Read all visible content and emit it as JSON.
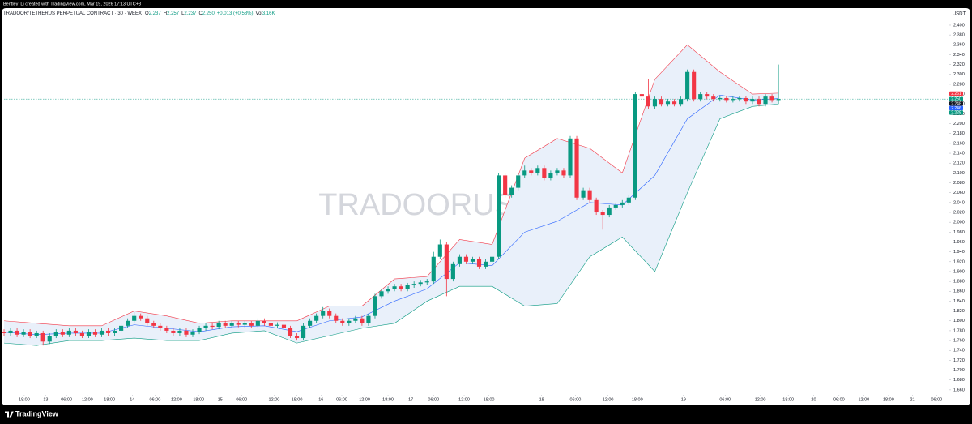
{
  "header": {
    "credit": "Bentley_Li created with TradingView.com, Mar 19, 2026 17:13 UTC+8"
  },
  "chart_data": {
    "type": "candlestick",
    "symbol": "TRADOOR/TETHERUS PERPETUAL CONTRACT · 30 · WEEX",
    "legend_values": [
      {
        "label": "O",
        "value": "2.237"
      },
      {
        "label": "H",
        "value": "2.257"
      },
      {
        "label": "L",
        "value": "2.237"
      },
      {
        "label": "C",
        "value": "2.250"
      }
    ],
    "change": "+0.013 (+0.58%)",
    "volume": {
      "label": "Vol",
      "value": "3.16K"
    },
    "watermark": "TRADOORUSDT.P, 30",
    "y_unit": "USDT",
    "up_color": "#089981",
    "down_color": "#f23645",
    "open": [
      1.778,
      1.775,
      1.78,
      1.772,
      1.778,
      1.77,
      1.775,
      1.758,
      1.77,
      1.778,
      1.772,
      1.78,
      1.775,
      1.77,
      1.778,
      1.772,
      1.78,
      1.775,
      1.78,
      1.79,
      1.8,
      1.81,
      1.805,
      1.795,
      1.79,
      1.785,
      1.78,
      1.775,
      1.78,
      1.772,
      1.778,
      1.785,
      1.79,
      1.788,
      1.795,
      1.79,
      1.795,
      1.792,
      1.795,
      1.79,
      1.8,
      1.795,
      1.79,
      1.792,
      1.785,
      1.77,
      1.765,
      1.79,
      1.8,
      1.81,
      1.82,
      1.81,
      1.8,
      1.795,
      1.8,
      1.805,
      1.795,
      1.81,
      1.85,
      1.86,
      1.865,
      1.87,
      1.865,
      1.872,
      1.875,
      1.878,
      1.88,
      1.93,
      1.955,
      1.885,
      1.915,
      1.93,
      1.92,
      1.925,
      1.91,
      1.92,
      1.93,
      2.095,
      2.055,
      2.07,
      2.095,
      2.105,
      2.1,
      2.11,
      2.09,
      2.1,
      2.105,
      2.095,
      2.17,
      2.05,
      2.065,
      2.045,
      2.02,
      2.015,
      2.03,
      2.035,
      2.04,
      2.05,
      2.26,
      2.255,
      2.235,
      2.25,
      2.24,
      2.245,
      2.24,
      2.25,
      2.305,
      2.25,
      2.26,
      2.255,
      2.25,
      2.252,
      2.248,
      2.25,
      2.252,
      2.245,
      2.25,
      2.24,
      2.255,
      2.248
    ],
    "high": [
      1.783,
      1.785,
      1.785,
      1.783,
      1.783,
      1.78,
      1.78,
      1.775,
      1.783,
      1.783,
      1.785,
      1.785,
      1.78,
      1.783,
      1.783,
      1.785,
      1.785,
      1.785,
      1.795,
      1.805,
      1.818,
      1.815,
      1.81,
      1.8,
      1.795,
      1.79,
      1.785,
      1.785,
      1.785,
      1.783,
      1.79,
      1.795,
      1.795,
      1.8,
      1.8,
      1.8,
      1.8,
      1.8,
      1.8,
      1.805,
      1.805,
      1.8,
      1.797,
      1.797,
      1.79,
      1.775,
      1.795,
      1.805,
      1.815,
      1.828,
      1.825,
      1.815,
      1.805,
      1.805,
      1.81,
      1.81,
      1.815,
      1.855,
      1.865,
      1.87,
      1.875,
      1.875,
      1.877,
      1.88,
      1.883,
      1.885,
      1.94,
      1.965,
      1.96,
      1.92,
      1.935,
      1.935,
      1.93,
      1.93,
      1.925,
      1.935,
      2.1,
      2.1,
      2.075,
      2.1,
      2.115,
      2.11,
      2.115,
      2.115,
      2.105,
      2.11,
      2.11,
      2.175,
      2.175,
      2.07,
      2.07,
      2.05,
      2.025,
      2.035,
      2.04,
      2.045,
      2.055,
      2.265,
      2.265,
      2.29,
      2.255,
      2.255,
      2.25,
      2.25,
      2.255,
      2.31,
      2.31,
      2.265,
      2.265,
      2.26,
      2.256,
      2.256,
      2.255,
      2.256,
      2.256,
      2.255,
      2.255,
      2.26,
      2.26,
      2.32
    ],
    "low": [
      1.77,
      1.77,
      1.767,
      1.767,
      1.765,
      1.765,
      1.75,
      1.753,
      1.765,
      1.767,
      1.767,
      1.77,
      1.765,
      1.765,
      1.767,
      1.767,
      1.77,
      1.77,
      1.775,
      1.785,
      1.795,
      1.8,
      1.79,
      1.785,
      1.78,
      1.775,
      1.77,
      1.77,
      1.767,
      1.767,
      1.773,
      1.78,
      1.783,
      1.783,
      1.785,
      1.785,
      1.787,
      1.787,
      1.785,
      1.785,
      1.79,
      1.785,
      1.785,
      1.78,
      1.765,
      1.76,
      1.76,
      1.785,
      1.795,
      1.805,
      1.805,
      1.795,
      1.79,
      1.79,
      1.795,
      1.79,
      1.79,
      1.805,
      1.845,
      1.855,
      1.86,
      1.86,
      1.86,
      1.867,
      1.87,
      1.873,
      1.875,
      1.925,
      1.85,
      1.88,
      1.91,
      1.915,
      1.915,
      1.905,
      1.905,
      1.915,
      1.925,
      2.05,
      2.05,
      2.065,
      2.09,
      2.095,
      2.095,
      2.085,
      2.085,
      2.095,
      2.09,
      2.09,
      2.045,
      2.045,
      2.04,
      2.015,
      1.985,
      2.01,
      2.025,
      2.03,
      2.035,
      2.045,
      2.25,
      2.23,
      2.23,
      2.235,
      2.235,
      2.235,
      2.235,
      2.245,
      2.245,
      2.245,
      2.25,
      2.245,
      2.245,
      2.243,
      2.243,
      2.245,
      2.24,
      2.24,
      2.235,
      2.235,
      2.243,
      2.24
    ],
    "close": [
      1.775,
      1.78,
      1.772,
      1.778,
      1.77,
      1.775,
      1.758,
      1.77,
      1.778,
      1.772,
      1.78,
      1.775,
      1.77,
      1.778,
      1.772,
      1.78,
      1.775,
      1.78,
      1.79,
      1.8,
      1.81,
      1.805,
      1.795,
      1.79,
      1.785,
      1.78,
      1.775,
      1.78,
      1.772,
      1.778,
      1.785,
      1.79,
      1.788,
      1.795,
      1.79,
      1.795,
      1.792,
      1.795,
      1.79,
      1.8,
      1.795,
      1.79,
      1.792,
      1.785,
      1.77,
      1.765,
      1.79,
      1.8,
      1.81,
      1.82,
      1.81,
      1.8,
      1.795,
      1.8,
      1.805,
      1.795,
      1.81,
      1.85,
      1.86,
      1.865,
      1.87,
      1.865,
      1.872,
      1.875,
      1.878,
      1.88,
      1.93,
      1.955,
      1.885,
      1.915,
      1.93,
      1.92,
      1.925,
      1.91,
      1.92,
      1.93,
      2.095,
      2.055,
      2.07,
      2.095,
      2.105,
      2.1,
      2.11,
      2.09,
      2.1,
      2.105,
      2.095,
      2.17,
      2.05,
      2.065,
      2.045,
      2.02,
      2.015,
      2.03,
      2.035,
      2.04,
      2.05,
      2.26,
      2.255,
      2.235,
      2.25,
      2.24,
      2.245,
      2.24,
      2.25,
      2.305,
      2.25,
      2.26,
      2.255,
      2.25,
      2.252,
      2.248,
      2.25,
      2.252,
      2.245,
      2.25,
      2.24,
      2.255,
      2.248,
      2.25
    ],
    "bands": {
      "x": [
        0,
        5,
        10,
        15,
        20,
        25,
        30,
        35,
        40,
        45,
        50,
        55,
        60,
        65,
        70,
        75,
        80,
        85,
        90,
        95,
        100,
        105,
        110,
        115,
        119
      ],
      "fill_color": "#e9f0fa",
      "series": [
        {
          "color": "#f23645",
          "values": [
            1.8,
            1.795,
            1.79,
            1.79,
            1.82,
            1.81,
            1.795,
            1.8,
            1.8,
            1.8,
            1.83,
            1.83,
            1.885,
            1.89,
            1.965,
            1.955,
            2.13,
            2.17,
            2.15,
            2.1,
            2.29,
            2.36,
            2.305,
            2.26,
            2.262
          ]
        },
        {
          "color": "#2962ff",
          "values": [
            1.777,
            1.772,
            1.775,
            1.775,
            1.792,
            1.785,
            1.778,
            1.788,
            1.79,
            1.778,
            1.8,
            1.808,
            1.84,
            1.865,
            1.918,
            1.912,
            1.98,
            2.002,
            2.04,
            2.035,
            2.095,
            2.21,
            2.258,
            2.248,
            2.251
          ]
        },
        {
          "color": "#089981",
          "values": [
            1.755,
            1.75,
            1.76,
            1.76,
            1.765,
            1.76,
            1.76,
            1.775,
            1.78,
            1.755,
            1.77,
            1.785,
            1.795,
            1.84,
            1.87,
            1.87,
            1.83,
            1.835,
            1.93,
            1.97,
            1.9,
            2.06,
            2.21,
            2.235,
            2.24
          ]
        }
      ]
    },
    "price_tags": [
      {
        "value": 2.261,
        "label": "2.261",
        "color": "#f23645"
      },
      {
        "value": 2.25,
        "label": "2.250",
        "color": "#089981"
      },
      {
        "value": 2.248,
        "label": "2.248",
        "color": "#131722"
      },
      {
        "value": 2.246,
        "label": "2.246",
        "color": "#2962ff"
      },
      {
        "value": 2.228,
        "label": "2.228",
        "color": "#089981"
      }
    ],
    "xlim": [
      0,
      145
    ],
    "xticks": [
      {
        "value": 3.1,
        "label": "18:00"
      },
      {
        "value": 6.4,
        "label": "13"
      },
      {
        "value": 9.6,
        "label": "06:00"
      },
      {
        "value": 12.8,
        "label": "12:00"
      },
      {
        "value": 16.2,
        "label": "18:00"
      },
      {
        "value": 19.7,
        "label": "14"
      },
      {
        "value": 23.2,
        "label": "06:00"
      },
      {
        "value": 26.5,
        "label": "12:00"
      },
      {
        "value": 29.9,
        "label": "18:00"
      },
      {
        "value": 33.2,
        "label": "15"
      },
      {
        "value": 36.5,
        "label": "06:00"
      },
      {
        "value": 41.5,
        "label": "12:00"
      },
      {
        "value": 45.0,
        "label": "18:00"
      },
      {
        "value": 48.7,
        "label": "16"
      },
      {
        "value": 51.9,
        "label": "06:00"
      },
      {
        "value": 55.4,
        "label": "12:00"
      },
      {
        "value": 59.0,
        "label": "18:00"
      },
      {
        "value": 62.5,
        "label": "17"
      },
      {
        "value": 66.0,
        "label": "06:00"
      },
      {
        "value": 70.7,
        "label": "12:00"
      },
      {
        "value": 74.5,
        "label": "18:00"
      },
      {
        "value": 82.6,
        "label": "18"
      },
      {
        "value": 87.8,
        "label": "06:00"
      },
      {
        "value": 92.8,
        "label": "12:00"
      },
      {
        "value": 97.3,
        "label": "18:00"
      },
      {
        "value": 104.4,
        "label": "19"
      },
      {
        "value": 110.8,
        "label": "06:00"
      },
      {
        "value": 116.2,
        "label": "12:00"
      },
      {
        "value": 120.5,
        "label": "18:00"
      },
      {
        "value": 124.4,
        "label": "20"
      },
      {
        "value": 128.3,
        "label": "06:00"
      },
      {
        "value": 132.1,
        "label": "12:00"
      },
      {
        "value": 135.9,
        "label": "18:00"
      },
      {
        "value": 139.6,
        "label": "21"
      },
      {
        "value": 143.3,
        "label": "06:00"
      }
    ],
    "ylim": [
      1.645,
      2.4345
    ],
    "yticks": [
      {
        "value": 1.66,
        "label": "1.660"
      },
      {
        "value": 1.68,
        "label": "1.680"
      },
      {
        "value": 1.7,
        "label": "1.700"
      },
      {
        "value": 1.72,
        "label": "1.720"
      },
      {
        "value": 1.74,
        "label": "1.740"
      },
      {
        "value": 1.76,
        "label": "1.760"
      },
      {
        "value": 1.78,
        "label": "1.780"
      },
      {
        "value": 1.8,
        "label": "1.800"
      },
      {
        "value": 1.82,
        "label": "1.820"
      },
      {
        "value": 1.84,
        "label": "1.840"
      },
      {
        "value": 1.86,
        "label": "1.860"
      },
      {
        "value": 1.88,
        "label": "1.880"
      },
      {
        "value": 1.9,
        "label": "1.900"
      },
      {
        "value": 1.92,
        "label": "1.920"
      },
      {
        "value": 1.94,
        "label": "1.940"
      },
      {
        "value": 1.96,
        "label": "1.960"
      },
      {
        "value": 1.98,
        "label": "1.980"
      },
      {
        "value": 2.0,
        "label": "2.000"
      },
      {
        "value": 2.02,
        "label": "2.020"
      },
      {
        "value": 2.04,
        "label": "2.040"
      },
      {
        "value": 2.06,
        "label": "2.060"
      },
      {
        "value": 2.08,
        "label": "2.080"
      },
      {
        "value": 2.1,
        "label": "2.100"
      },
      {
        "value": 2.12,
        "label": "2.120"
      },
      {
        "value": 2.14,
        "label": "2.140"
      },
      {
        "value": 2.16,
        "label": "2.160"
      },
      {
        "value": 2.18,
        "label": "2.180"
      },
      {
        "value": 2.2,
        "label": "2.200"
      },
      {
        "value": 2.22,
        "label": "2.220"
      },
      {
        "value": 2.24,
        "label": "2.240"
      },
      {
        "value": 2.26,
        "label": "2.260"
      },
      {
        "value": 2.28,
        "label": "2.280"
      },
      {
        "value": 2.3,
        "label": "2.300"
      },
      {
        "value": 2.32,
        "label": "2.320"
      },
      {
        "value": 2.34,
        "label": "2.340"
      },
      {
        "value": 2.36,
        "label": "2.360"
      },
      {
        "value": 2.38,
        "label": "2.380"
      },
      {
        "value": 2.4,
        "label": "2.400"
      }
    ]
  },
  "footer": {
    "brand": "TradingView"
  }
}
